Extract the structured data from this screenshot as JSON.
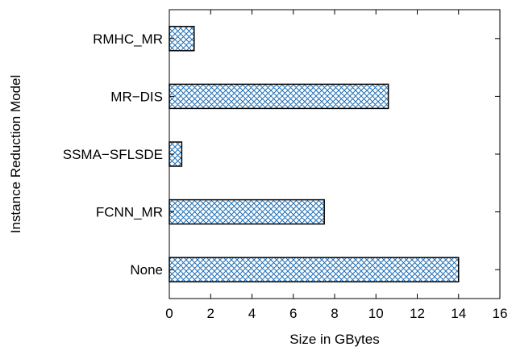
{
  "chart_data": {
    "type": "bar",
    "orientation": "horizontal",
    "categories": [
      "RMHC_MR",
      "MR−DIS",
      "SSMA−SFLSDE",
      "FCNN_MR",
      "None"
    ],
    "values": [
      1.2,
      10.6,
      0.6,
      7.5,
      14.0
    ],
    "xlabel": "Size in GBytes",
    "ylabel": "Instance Reduction Model",
    "xlim": [
      0,
      16
    ],
    "xticks": [
      "0",
      "2",
      "4",
      "6",
      "8",
      "10",
      "12",
      "14",
      "16"
    ],
    "grid": false,
    "bar_fill": "crosshatch",
    "bar_color": "#1f6fb5",
    "edge_color": "#000000"
  }
}
